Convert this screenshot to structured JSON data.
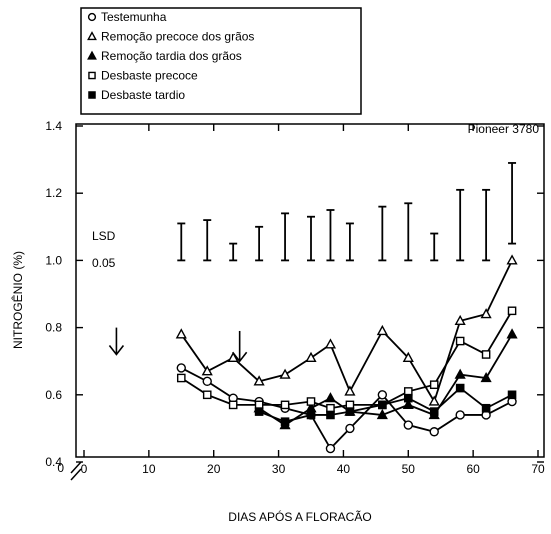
{
  "chart_data": {
    "type": "line",
    "title": "Pioneer 3780",
    "xlabel": "DIAS APÓS A FLORACÃO",
    "ylabel": "NITROGÊNIO (%)",
    "xlim": [
      0,
      70
    ],
    "ylim": [
      0.4,
      1.4
    ],
    "xticks": [
      0,
      10,
      20,
      30,
      40,
      50,
      60,
      70
    ],
    "yticks": [
      0.4,
      0.6,
      0.8,
      1.0,
      1.2,
      1.4
    ],
    "origin_label": "0",
    "lsd_label": [
      "LSD",
      "0.05"
    ],
    "lsd_bars": [
      {
        "x": 15,
        "low": 1.0,
        "high": 1.11
      },
      {
        "x": 19,
        "low": 1.0,
        "high": 1.12
      },
      {
        "x": 23,
        "low": 1.0,
        "high": 1.05
      },
      {
        "x": 27,
        "low": 1.0,
        "high": 1.1
      },
      {
        "x": 31,
        "low": 1.0,
        "high": 1.14
      },
      {
        "x": 35,
        "low": 1.0,
        "high": 1.13
      },
      {
        "x": 38,
        "low": 1.0,
        "high": 1.15
      },
      {
        "x": 41,
        "low": 1.0,
        "high": 1.11
      },
      {
        "x": 46,
        "low": 1.0,
        "high": 1.16
      },
      {
        "x": 50,
        "low": 1.0,
        "high": 1.17
      },
      {
        "x": 54,
        "low": 1.0,
        "high": 1.08
      },
      {
        "x": 58,
        "low": 1.0,
        "high": 1.21
      },
      {
        "x": 62,
        "low": 1.0,
        "high": 1.21
      },
      {
        "x": 66,
        "low": 1.05,
        "high": 1.29
      }
    ],
    "arrows": [
      {
        "x": 5,
        "y_top": 0.8,
        "y_bottom": 0.72
      },
      {
        "x": 24,
        "y_top": 0.79,
        "y_bottom": 0.7
      }
    ],
    "legend_position": "top-left",
    "series": [
      {
        "name": "Testemunha",
        "marker": "circle-open",
        "x": [
          15,
          19,
          23,
          27,
          31,
          35,
          38,
          41,
          46,
          50,
          54,
          58,
          62,
          66
        ],
        "values": [
          0.68,
          0.64,
          0.59,
          0.58,
          0.56,
          0.54,
          0.44,
          0.5,
          0.6,
          0.51,
          0.49,
          0.54,
          0.54,
          0.58
        ]
      },
      {
        "name": "Remoção precoce dos grãos",
        "marker": "triangle-open",
        "x": [
          15,
          19,
          23,
          27,
          31,
          35,
          38,
          41,
          46,
          50,
          54,
          58,
          62,
          66
        ],
        "values": [
          0.78,
          0.67,
          0.71,
          0.64,
          0.66,
          0.71,
          0.75,
          0.61,
          0.79,
          0.71,
          0.58,
          0.82,
          0.84,
          1.0
        ]
      },
      {
        "name": "Remoção tardia dos grãos",
        "marker": "triangle-filled",
        "x": [
          27,
          31,
          35,
          38,
          41,
          46,
          50,
          54,
          58,
          62,
          66
        ],
        "values": [
          0.56,
          0.51,
          0.56,
          0.59,
          0.55,
          0.54,
          0.57,
          0.54,
          0.66,
          0.65,
          0.78
        ]
      },
      {
        "name": "Desbaste precoce",
        "marker": "square-open",
        "x": [
          15,
          19,
          23,
          27,
          31,
          35,
          38,
          41,
          46,
          50,
          54,
          58,
          62,
          66
        ],
        "values": [
          0.65,
          0.6,
          0.57,
          0.57,
          0.57,
          0.58,
          0.56,
          0.57,
          0.57,
          0.61,
          0.63,
          0.76,
          0.72,
          0.85
        ]
      },
      {
        "name": "Desbaste tardio",
        "marker": "square-filled",
        "x": [
          27,
          31,
          35,
          38,
          41,
          46,
          50,
          54,
          58,
          62,
          66
        ],
        "values": [
          0.55,
          0.52,
          0.54,
          0.54,
          0.55,
          0.57,
          0.59,
          0.55,
          0.62,
          0.56,
          0.6
        ]
      }
    ]
  }
}
